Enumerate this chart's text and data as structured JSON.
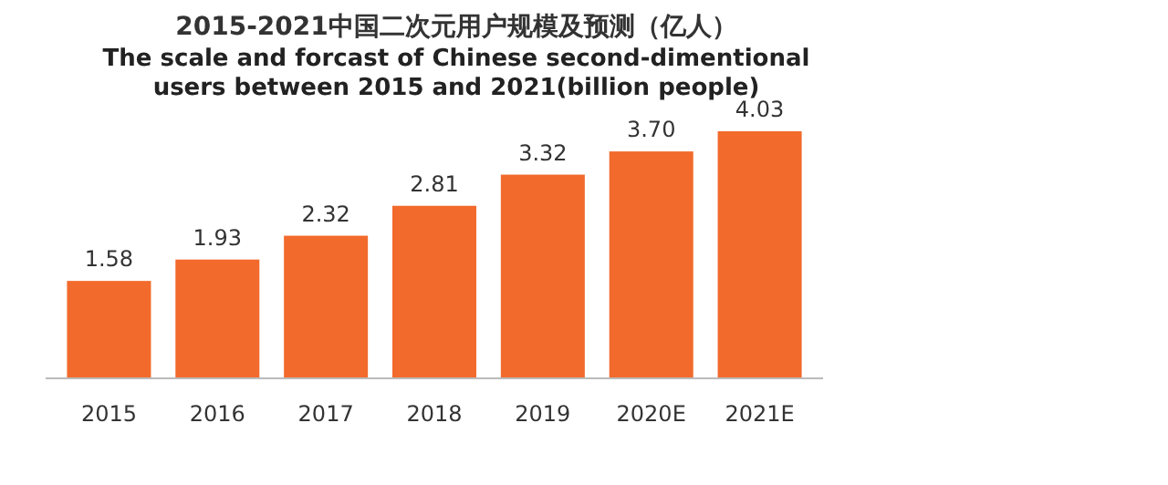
{
  "chart_data": {
    "type": "bar",
    "title": "2015-2021中国二次元用户规模及预测（亿人）",
    "subtitle": "The scale and forcast of Chinese second-dimentional users between 2015 and 2021(billion people)",
    "categories": [
      "2015",
      "2016",
      "2017",
      "2018",
      "2019",
      "2020E",
      "2021E"
    ],
    "values": [
      1.58,
      1.93,
      2.32,
      2.81,
      3.32,
      3.7,
      4.03
    ],
    "value_labels": [
      "1.58",
      "1.93",
      "2.32",
      "2.81",
      "3.32",
      "3.70",
      "4.03"
    ],
    "color": "#f26a2c"
  }
}
